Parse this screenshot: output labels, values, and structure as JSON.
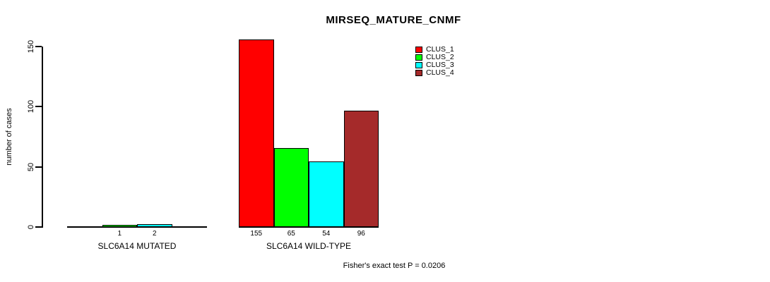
{
  "chart_data": {
    "type": "bar",
    "title": "MIRSEQ_MATURE_CNMF",
    "ylabel": "number of cases",
    "xlabel": "",
    "groups": [
      {
        "label": "SLC6A14 MUTATED",
        "bar_value_labels": [
          "",
          "1",
          "2",
          ""
        ]
      },
      {
        "label": "SLC6A14 WILD-TYPE",
        "bar_value_labels": [
          "155",
          "65",
          "54",
          "96"
        ]
      }
    ],
    "series": [
      {
        "name": "CLUS_1",
        "color": "#FF0000",
        "values": [
          0,
          155
        ]
      },
      {
        "name": "CLUS_2",
        "color": "#00FF00",
        "values": [
          1,
          65
        ]
      },
      {
        "name": "CLUS_3",
        "color": "#00FFFF",
        "values": [
          2,
          54
        ]
      },
      {
        "name": "CLUS_4",
        "color": "#A52A2A",
        "values": [
          0,
          96
        ]
      }
    ],
    "yticks": [
      0,
      50,
      100,
      150
    ],
    "ylim": [
      0,
      155
    ],
    "grid": false,
    "legend_position": "top-right",
    "axis_color": "#000000",
    "footnote": "Fisher's exact test P = 0.0206"
  }
}
